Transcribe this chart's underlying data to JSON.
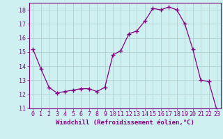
{
  "x": [
    0,
    1,
    2,
    3,
    4,
    5,
    6,
    7,
    8,
    9,
    10,
    11,
    12,
    13,
    14,
    15,
    16,
    17,
    18,
    19,
    20,
    21,
    22,
    23
  ],
  "y": [
    15.2,
    13.8,
    12.5,
    12.1,
    12.2,
    12.3,
    12.4,
    12.4,
    12.2,
    12.5,
    14.8,
    15.1,
    16.3,
    16.5,
    17.2,
    18.1,
    18.0,
    18.2,
    18.0,
    17.0,
    15.2,
    13.0,
    12.9,
    10.9
  ],
  "line_color": "#800080",
  "marker": "+",
  "marker_size": 4,
  "bg_color": "#cff0f0",
  "grid_color": "#b0c8c8",
  "xlabel": "Windchill (Refroidissement éolien,°C)",
  "ylabel": "",
  "ylim": [
    11,
    18.5
  ],
  "xlim": [
    -0.5,
    23.5
  ],
  "yticks": [
    11,
    12,
    13,
    14,
    15,
    16,
    17,
    18
  ],
  "xticks": [
    0,
    1,
    2,
    3,
    4,
    5,
    6,
    7,
    8,
    9,
    10,
    11,
    12,
    13,
    14,
    15,
    16,
    17,
    18,
    19,
    20,
    21,
    22,
    23
  ],
  "tick_color": "#800080",
  "label_color": "#800080",
  "axis_color": "#800080",
  "font_size": 6,
  "xlabel_fontsize": 6.5
}
